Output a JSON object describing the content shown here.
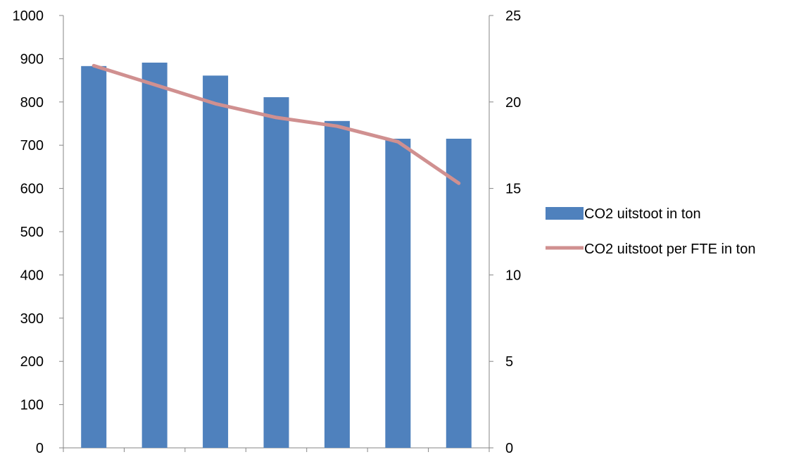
{
  "chart_data": {
    "type": "bar",
    "categories": [
      "",
      "",
      "",
      "",
      "",
      "",
      ""
    ],
    "series": [
      {
        "name": "CO2 uitstoot in ton",
        "type": "bar",
        "axis": "left",
        "color": "#4F81BD",
        "values": [
          883,
          891,
          861,
          811,
          756,
          715,
          715
        ]
      },
      {
        "name": "CO2 uitstoot per FTE in ton",
        "type": "line",
        "axis": "right",
        "color": "#D09090",
        "values": [
          22.1,
          21.0,
          19.9,
          19.1,
          18.6,
          17.7,
          15.3
        ]
      }
    ],
    "y_left": {
      "range": [
        0,
        1000
      ],
      "ticks": [
        0,
        100,
        200,
        300,
        400,
        500,
        600,
        700,
        800,
        900,
        1000
      ],
      "tick_labels": [
        "0",
        "100",
        "200",
        "300",
        "400",
        "500",
        "600",
        "700",
        "800",
        "900",
        "1000"
      ]
    },
    "y_right": {
      "range": [
        0,
        25
      ],
      "ticks": [
        0,
        5,
        10,
        15,
        20,
        25
      ],
      "tick_labels": [
        "0",
        "5",
        "10",
        "15",
        "20",
        "25"
      ]
    },
    "grid": false,
    "legend": "right"
  }
}
